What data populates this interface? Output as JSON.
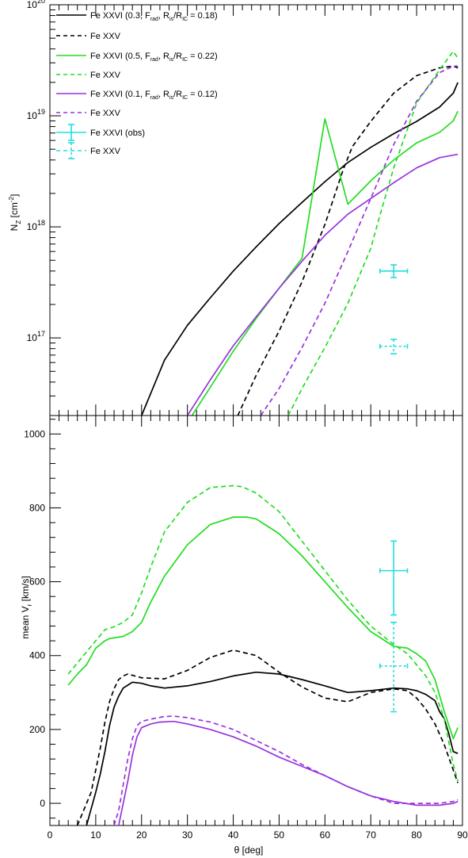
{
  "colors": {
    "black": "#000000",
    "green": "#22dd22",
    "purple": "#9933dd",
    "cyan": "#22dddd"
  },
  "chart_data": [
    {
      "type": "line",
      "y_scale": "log",
      "xlim": [
        0,
        90
      ],
      "ylim": [
        2e+16,
        1e+20
      ],
      "ylabel": "N_Z [cm^-2]",
      "ylabel_parts": {
        "main": "N",
        "sub": "Z",
        "unit_open": " [cm",
        "sup": "-2",
        "unit_close": "]"
      },
      "yticks": [
        {
          "value": 1e+17,
          "base": "10",
          "exp": "17"
        },
        {
          "value": 1e+18,
          "base": "10",
          "exp": "18"
        },
        {
          "value": 1e+19,
          "base": "10",
          "exp": "19"
        },
        {
          "value": 1e+20,
          "base": "10",
          "exp": "20"
        }
      ],
      "legend": {
        "placement": "top-left",
        "entries": [
          {
            "series": 0,
            "text": "Fe XXVI (0.3, F_rad, R_is/R_IC = 0.18)",
            "parts": {
              "a": "Fe XXVI (0.3, F",
              "b": "rad",
              "c": ", R",
              "d": "is",
              "e": "/R",
              "f": "IC",
              "g": " = 0.18)"
            }
          },
          {
            "series": 1,
            "text": "Fe XXV",
            "parts": {
              "a": "Fe XXV"
            }
          },
          {
            "series": 2,
            "text": "Fe XXVI (0.5, F_rad, R_is/R_IC = 0.22)",
            "parts": {
              "a": "Fe XXVI (0.5, F",
              "b": "rad",
              "c": ", R",
              "d": "is",
              "e": "/R",
              "f": "IC",
              "g": " = 0.22)"
            }
          },
          {
            "series": 3,
            "text": "Fe XXV",
            "parts": {
              "a": "Fe XXV"
            }
          },
          {
            "series": 4,
            "text": "Fe XXVI (0.1, F_rad, R_is/R_IC = 0.12)",
            "parts": {
              "a": "Fe XXVI (0.1, F",
              "b": "rad",
              "c": ", R",
              "d": "is",
              "e": "/R",
              "f": "IC",
              "g": " = 0.12)"
            }
          },
          {
            "series": 5,
            "text": "Fe XXV",
            "parts": {
              "a": "Fe XXV"
            }
          },
          {
            "series": 6,
            "text": "Fe XXVI (obs)",
            "parts": {
              "a": "Fe XXVI (obs)"
            }
          },
          {
            "series": 7,
            "text": "Fe XXV",
            "parts": {
              "a": "Fe XXV"
            }
          }
        ]
      },
      "series": [
        {
          "color": "black",
          "dash": false,
          "x": [
            20,
            25,
            30,
            35,
            40,
            45,
            50,
            55,
            60,
            65,
            70,
            75,
            80,
            85,
            88,
            89
          ],
          "y": [
            2e+16,
            6.3e+16,
            1.3e+17,
            2.3e+17,
            4e+17,
            6.6e+17,
            1.07e+18,
            1.66e+18,
            2.55e+18,
            3.8e+18,
            5.2e+18,
            6.9e+18,
            8.9e+18,
            1.2e+19,
            1.6e+19,
            2e+19
          ]
        },
        {
          "color": "black",
          "dash": true,
          "x": [
            41,
            45,
            50,
            55,
            60,
            64,
            66,
            70,
            75,
            80,
            85,
            88,
            89
          ],
          "y": [
            2e+16,
            4.6e+16,
            1.15e+17,
            3.2e+17,
            1.05e+18,
            3.3e+18,
            5.3e+18,
            8.9e+18,
            1.6e+19,
            2.3e+19,
            2.7e+19,
            2.8e+19,
            2.7e+19
          ]
        },
        {
          "color": "green",
          "dash": false,
          "x": [
            31,
            35,
            40,
            45,
            50,
            55,
            60,
            65,
            70,
            75,
            80,
            85,
            88,
            89
          ],
          "y": [
            2e+16,
            3.6e+16,
            7.6e+16,
            1.5e+17,
            2.8e+17,
            5.2e+17,
            9.4e+18,
            1.6e+18,
            2.6e+18,
            4e+18,
            5.7e+18,
            7.1e+18,
            9e+18,
            1.1e+19
          ]
        },
        {
          "color": "green",
          "dash": true,
          "x": [
            52,
            55,
            60,
            65,
            70,
            72,
            75,
            80,
            85,
            88,
            89
          ],
          "y": [
            2e+16,
            3.5e+16,
            8.2e+16,
            2.05e+17,
            6.4e+17,
            1.27e+18,
            3.4e+18,
            1.3e+19,
            2.6e+19,
            3.8e+19,
            3.3e+19
          ]
        },
        {
          "color": "purple",
          "dash": false,
          "x": [
            30,
            35,
            40,
            45,
            50,
            55,
            60,
            65,
            70,
            75,
            80,
            85,
            89
          ],
          "y": [
            2e+16,
            4.2e+16,
            8.5e+16,
            1.55e+17,
            2.8e+17,
            4.9e+17,
            8.4e+17,
            1.3e+18,
            1.8e+18,
            2.5e+18,
            3.4e+18,
            4.2e+18,
            4.5e+18
          ]
        },
        {
          "color": "purple",
          "dash": true,
          "x": [
            46,
            50,
            55,
            60,
            65,
            70,
            75,
            80,
            85,
            88,
            89
          ],
          "y": [
            2e+16,
            3.5e+16,
            8.2e+16,
            2.05e+17,
            6e+17,
            1.8e+18,
            5.5e+18,
            1.35e+19,
            2.45e+19,
            2.8e+19,
            2.8e+19
          ]
        },
        {
          "color": "cyan",
          "dash": false,
          "errorbar": true,
          "x": [
            75
          ],
          "y": [
            4e+17
          ],
          "xerr": [
            3
          ],
          "yerr_low": [
            3.5e+17
          ],
          "yerr_high": [
            4.55e+17
          ]
        },
        {
          "color": "cyan",
          "dash": true,
          "errorbar": true,
          "x": [
            75
          ],
          "y": [
            8.4e+16
          ],
          "xerr": [
            3
          ],
          "yerr_low": [
            7.2e+16
          ],
          "yerr_high": [
            9.7e+16
          ]
        }
      ]
    },
    {
      "type": "line",
      "xlim": [
        0,
        90
      ],
      "ylim": [
        -60,
        1050
      ],
      "xlabel": "θ [deg]",
      "ylabel": "mean V_r [km/s]",
      "ylabel_parts": {
        "main": "mean V",
        "sub": "r",
        "unit": " [km/s]"
      },
      "xticks": [
        0,
        10,
        20,
        30,
        40,
        50,
        60,
        70,
        80,
        90
      ],
      "yticks": [
        0,
        200,
        400,
        600,
        800,
        1000
      ],
      "series": [
        {
          "color": "black",
          "dash": false,
          "x": [
            8,
            9,
            10,
            11,
            12,
            13,
            14,
            15,
            16,
            17,
            18,
            20,
            22,
            25,
            30,
            35,
            40,
            45,
            50,
            55,
            60,
            65,
            70,
            75,
            78,
            80,
            82,
            84,
            85,
            86,
            87,
            88,
            89
          ],
          "y": [
            -60,
            -15,
            30,
            80,
            140,
            210,
            260,
            290,
            312,
            320,
            328,
            325,
            318,
            312,
            318,
            330,
            345,
            355,
            350,
            335,
            318,
            300,
            305,
            312,
            310,
            305,
            295,
            278,
            248,
            230,
            190,
            140,
            135
          ]
        },
        {
          "color": "black",
          "dash": true,
          "x": [
            6,
            7,
            8,
            9,
            10,
            11,
            12,
            13,
            14,
            15,
            16,
            17,
            20,
            25,
            30,
            35,
            40,
            45,
            50,
            55,
            60,
            65,
            70,
            75,
            78,
            80,
            82,
            84,
            86,
            88,
            89
          ],
          "y": [
            -60,
            -30,
            0,
            30,
            90,
            150,
            220,
            275,
            310,
            335,
            345,
            350,
            340,
            337,
            360,
            395,
            415,
            400,
            355,
            315,
            285,
            275,
            300,
            310,
            305,
            285,
            255,
            215,
            160,
            90,
            55
          ]
        },
        {
          "color": "green",
          "dash": false,
          "x": [
            4,
            6,
            8,
            10,
            12,
            13,
            14,
            16,
            18,
            20,
            22,
            25,
            30,
            35,
            40,
            43,
            45,
            50,
            55,
            60,
            65,
            70,
            75,
            78,
            80,
            82,
            84,
            86,
            88,
            89
          ],
          "y": [
            320,
            350,
            375,
            420,
            440,
            446,
            448,
            452,
            465,
            490,
            545,
            615,
            700,
            755,
            775,
            775,
            770,
            730,
            670,
            600,
            530,
            465,
            425,
            420,
            405,
            385,
            335,
            250,
            175,
            205
          ]
        },
        {
          "color": "green",
          "dash": true,
          "x": [
            4,
            6,
            8,
            10,
            12,
            14,
            16,
            18,
            20,
            22,
            25,
            30,
            35,
            40,
            42,
            45,
            50,
            55,
            60,
            65,
            70,
            75,
            78,
            80,
            82,
            84,
            86,
            88,
            89
          ],
          "y": [
            350,
            380,
            410,
            440,
            470,
            478,
            490,
            510,
            570,
            640,
            735,
            815,
            855,
            860,
            857,
            840,
            790,
            710,
            630,
            550,
            480,
            430,
            405,
            375,
            345,
            300,
            230,
            105,
            60
          ]
        },
        {
          "color": "purple",
          "dash": false,
          "x": [
            15,
            16,
            17,
            18,
            19,
            20,
            22,
            24,
            27,
            30,
            35,
            40,
            45,
            50,
            55,
            60,
            65,
            70,
            75,
            80,
            85,
            88,
            89
          ],
          "y": [
            -60,
            0,
            60,
            130,
            180,
            205,
            215,
            220,
            222,
            215,
            200,
            180,
            155,
            125,
            100,
            75,
            45,
            20,
            5,
            -5,
            -5,
            0,
            5
          ]
        },
        {
          "color": "purple",
          "dash": true,
          "x": [
            14,
            15,
            16,
            17,
            18,
            19,
            20,
            22,
            25,
            27,
            30,
            35,
            40,
            45,
            50,
            55,
            60,
            65,
            70,
            75,
            80,
            85,
            88,
            89
          ],
          "y": [
            -60,
            -20,
            50,
            120,
            175,
            210,
            222,
            228,
            235,
            236,
            232,
            220,
            200,
            170,
            140,
            105,
            75,
            45,
            20,
            0,
            0,
            0,
            5,
            10
          ]
        },
        {
          "color": "cyan",
          "dash": false,
          "errorbar": true,
          "x": [
            75
          ],
          "y": [
            630
          ],
          "xerr": [
            3
          ],
          "yerr_low": [
            510
          ],
          "yerr_high": [
            710
          ]
        },
        {
          "color": "cyan",
          "dash": true,
          "errorbar": true,
          "x": [
            75
          ],
          "y": [
            372
          ],
          "xerr": [
            3
          ],
          "yerr_low": [
            248
          ],
          "yerr_high": [
            490
          ]
        }
      ]
    }
  ]
}
